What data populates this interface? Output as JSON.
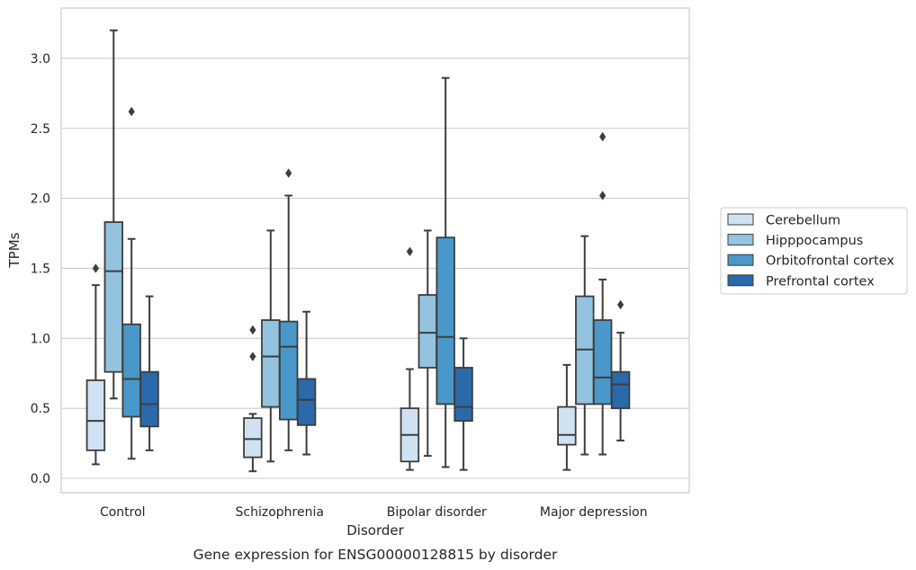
{
  "chart_data": {
    "type": "boxplot",
    "xlabel": "Disorder",
    "ylabel": "TPMs",
    "caption": "Gene expression for ENSG00000128815 by disorder",
    "ylim": [
      -0.1,
      3.37
    ],
    "yticks": [
      "0.0",
      "0.5",
      "1.0",
      "1.5",
      "2.0",
      "2.5",
      "3.0"
    ],
    "grid": "horizontal",
    "legend_position": "right",
    "categories": [
      "Control",
      "Schizophrenia",
      "Bipolar disorder",
      "Major depression"
    ],
    "series": [
      {
        "name": "Cerebellum",
        "color": "#d0e2f2",
        "boxes": [
          {
            "whisker_low": 0.1,
            "q1": 0.2,
            "median": 0.41,
            "q3": 0.7,
            "whisker_high": 1.38,
            "outliers": [
              1.5
            ]
          },
          {
            "whisker_low": 0.05,
            "q1": 0.15,
            "median": 0.28,
            "q3": 0.43,
            "whisker_high": 0.46,
            "outliers": [
              0.87,
              1.06
            ]
          },
          {
            "whisker_low": 0.06,
            "q1": 0.12,
            "median": 0.31,
            "q3": 0.5,
            "whisker_high": 0.78,
            "outliers": [
              1.62
            ]
          },
          {
            "whisker_low": 0.06,
            "q1": 0.24,
            "median": 0.31,
            "q3": 0.51,
            "whisker_high": 0.81,
            "outliers": []
          }
        ]
      },
      {
        "name": "Hipppocampus",
        "color": "#93c3df",
        "boxes": [
          {
            "whisker_low": 0.57,
            "q1": 0.76,
            "median": 1.48,
            "q3": 1.83,
            "whisker_high": 3.2,
            "outliers": []
          },
          {
            "whisker_low": 0.12,
            "q1": 0.51,
            "median": 0.87,
            "q3": 1.13,
            "whisker_high": 1.77,
            "outliers": []
          },
          {
            "whisker_low": 0.16,
            "q1": 0.79,
            "median": 1.04,
            "q3": 1.31,
            "whisker_high": 1.77,
            "outliers": []
          },
          {
            "whisker_low": 0.17,
            "q1": 0.53,
            "median": 0.92,
            "q3": 1.3,
            "whisker_high": 1.73,
            "outliers": []
          }
        ]
      },
      {
        "name": "Orbitofrontal cortex",
        "color": "#4a98c9",
        "boxes": [
          {
            "whisker_low": 0.14,
            "q1": 0.44,
            "median": 0.71,
            "q3": 1.1,
            "whisker_high": 1.71,
            "outliers": [
              2.62
            ]
          },
          {
            "whisker_low": 0.2,
            "q1": 0.42,
            "median": 0.94,
            "q3": 1.12,
            "whisker_high": 2.02,
            "outliers": [
              2.18
            ]
          },
          {
            "whisker_low": 0.08,
            "q1": 0.53,
            "median": 1.01,
            "q3": 1.72,
            "whisker_high": 2.86,
            "outliers": []
          },
          {
            "whisker_low": 0.17,
            "q1": 0.53,
            "median": 0.72,
            "q3": 1.13,
            "whisker_high": 1.42,
            "outliers": [
              2.02,
              2.44
            ]
          }
        ]
      },
      {
        "name": "Prefrontal cortex",
        "color": "#2a69aa",
        "boxes": [
          {
            "whisker_low": 0.2,
            "q1": 0.37,
            "median": 0.53,
            "q3": 0.76,
            "whisker_high": 1.3,
            "outliers": []
          },
          {
            "whisker_low": 0.17,
            "q1": 0.38,
            "median": 0.56,
            "q3": 0.71,
            "whisker_high": 1.19,
            "outliers": []
          },
          {
            "whisker_low": 0.06,
            "q1": 0.41,
            "median": 0.51,
            "q3": 0.79,
            "whisker_high": 1.0,
            "outliers": []
          },
          {
            "whisker_low": 0.27,
            "q1": 0.5,
            "median": 0.67,
            "q3": 0.76,
            "whisker_high": 1.04,
            "outliers": [
              1.24
            ]
          }
        ]
      }
    ]
  }
}
